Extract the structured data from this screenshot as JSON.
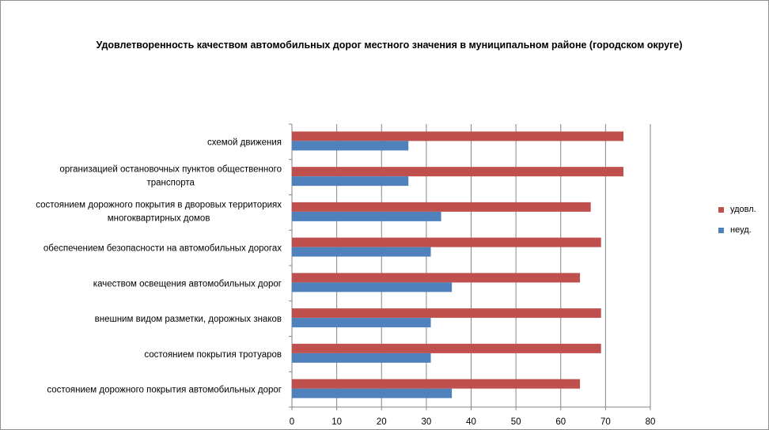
{
  "chart_data": {
    "type": "bar",
    "orientation": "horizontal",
    "title": "Удовлетворенность качеством автомобильных дорог местного значения в муниципальном районе (городском округе)",
    "categories": [
      [
        "схемой движения"
      ],
      [
        "организацией остановочных пунктов общественного",
        "транспорта"
      ],
      [
        "состоянием дорожного покрытия в дворовых территориях",
        "многоквартирных домов"
      ],
      [
        "обеспечением  безопасности на автомобильных дорогах"
      ],
      [
        "качеством освещения  автомобильных дорог"
      ],
      [
        "внешним  видом разметки, дорожных знаков"
      ],
      [
        "состоянием покрытия тротуаров"
      ],
      [
        "состоянием дорожного покрытия автомобильных дорог"
      ]
    ],
    "series": [
      {
        "name": "удовл.",
        "color": "#c0504d",
        "values": [
          74,
          74,
          66.7,
          69,
          64.3,
          69,
          69,
          64.3
        ]
      },
      {
        "name": "неуд.",
        "color": "#4f81bd",
        "values": [
          26,
          26,
          33.3,
          31,
          35.7,
          31,
          31,
          35.7
        ]
      }
    ],
    "x_ticks": [
      "0",
      "10",
      "20",
      "30",
      "40",
      "50",
      "60",
      "70",
      "80"
    ],
    "xlim": [
      0,
      80
    ],
    "grid": true,
    "legend_position": "right"
  }
}
